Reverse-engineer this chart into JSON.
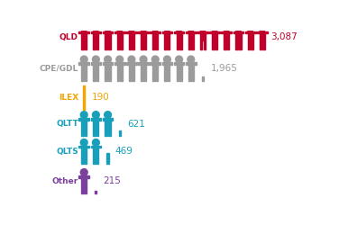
{
  "rows": [
    {
      "label": "QLD",
      "value": 3087,
      "color": "#c0002a",
      "label_color": "#c0002a",
      "value_color": "#c0002a"
    },
    {
      "label": "CPE/GDL",
      "value": 1965,
      "color": "#9b9b9b",
      "label_color": "#9b9b9b",
      "value_color": "#9b9b9b"
    },
    {
      "label": "ILEX",
      "value": 190,
      "color": "#f0a500",
      "label_color": "#f0a500",
      "value_color": "#f0a500"
    },
    {
      "label": "QLTT",
      "value": 621,
      "color": "#1a9fba",
      "label_color": "#1a9fba",
      "value_color": "#1a9fba"
    },
    {
      "label": "QLTS",
      "value": 469,
      "color": "#1a9fba",
      "label_color": "#1a9fba",
      "value_color": "#1a9fba"
    },
    {
      "label": "Other",
      "value": 215,
      "color": "#7b3f9e",
      "label_color": "#7b3f9e",
      "value_color": "#7b3f9e"
    }
  ],
  "max_value": 3087,
  "icon_max_count": 16,
  "figure_bg": "#ffffff",
  "label_fontsize": 6.5,
  "value_fontsize": 7.5
}
